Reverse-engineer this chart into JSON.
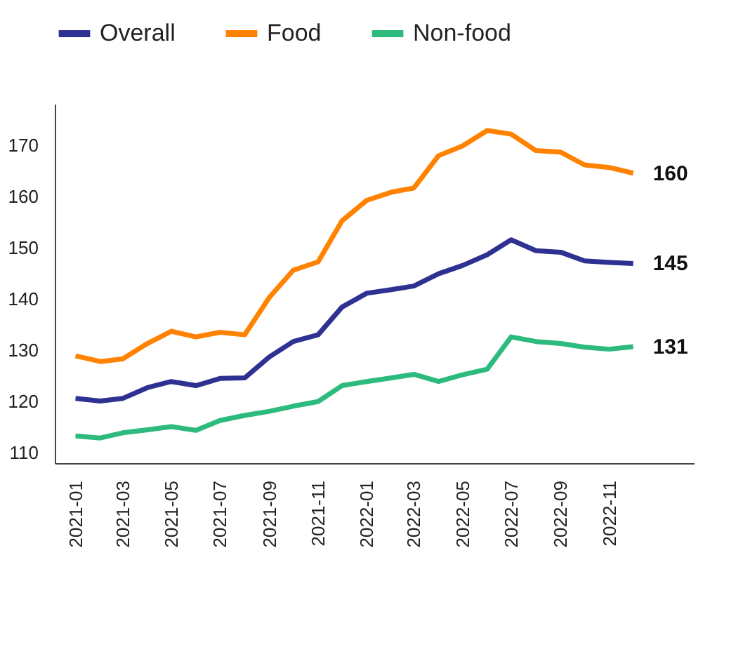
{
  "chart_data": {
    "type": "line",
    "x": [
      "2021-01",
      "2021-02",
      "2021-03",
      "2021-04",
      "2021-05",
      "2021-06",
      "2021-07",
      "2021-08",
      "2021-09",
      "2021-10",
      "2021-11",
      "2021-12",
      "2022-01",
      "2022-02",
      "2022-03",
      "2022-04",
      "2022-05",
      "2022-06",
      "2022-07",
      "2022-08",
      "2022-09",
      "2022-10",
      "2022-11",
      "2022-12"
    ],
    "series": [
      {
        "name": "Overall",
        "color": "#2e3192",
        "values": [
          120.6,
          120.1,
          120.6,
          122.7,
          123.9,
          123.1,
          124.5,
          124.6,
          128.7,
          131.7,
          133.0,
          138.4,
          141.1,
          141.8,
          142.5,
          144.9,
          146.5,
          148.6,
          151.5,
          149.4,
          149.1,
          147.4,
          147.1,
          146.9
        ]
      },
      {
        "name": "Food",
        "color": "#ff8200",
        "values": [
          128.9,
          127.8,
          128.3,
          131.3,
          133.7,
          132.6,
          133.5,
          133.0,
          140.3,
          145.6,
          147.2,
          155.2,
          159.2,
          160.8,
          161.6,
          167.9,
          169.8,
          172.8,
          172.1,
          168.9,
          168.6,
          166.1,
          165.6,
          164.5
        ]
      },
      {
        "name": "Non-food",
        "color": "#2dbb7d",
        "values": [
          113.3,
          112.9,
          113.9,
          114.5,
          115.1,
          114.4,
          116.3,
          117.3,
          118.1,
          119.1,
          120.0,
          123.1,
          123.9,
          124.6,
          125.3,
          123.9,
          125.2,
          126.3,
          132.6,
          131.7,
          131.3,
          130.6,
          130.2,
          130.7
        ]
      }
    ],
    "annotations": [
      "145",
      "160",
      "131"
    ],
    "xlim": [
      "2020-12-06",
      "2023-02-15"
    ],
    "xticks": [
      "2021-01",
      "2021-03",
      "2021-05",
      "2021-07",
      "2021-09",
      "2021-11",
      "2022-01",
      "2022-03",
      "2022-05",
      "2022-07",
      "2022-09",
      "2022-11"
    ],
    "ylim": [
      108,
      178
    ],
    "yticks": [
      110,
      120,
      130,
      140,
      150,
      160,
      170
    ],
    "grid": false,
    "legend": "top",
    "marker": "none",
    "line_style": "solid"
  }
}
